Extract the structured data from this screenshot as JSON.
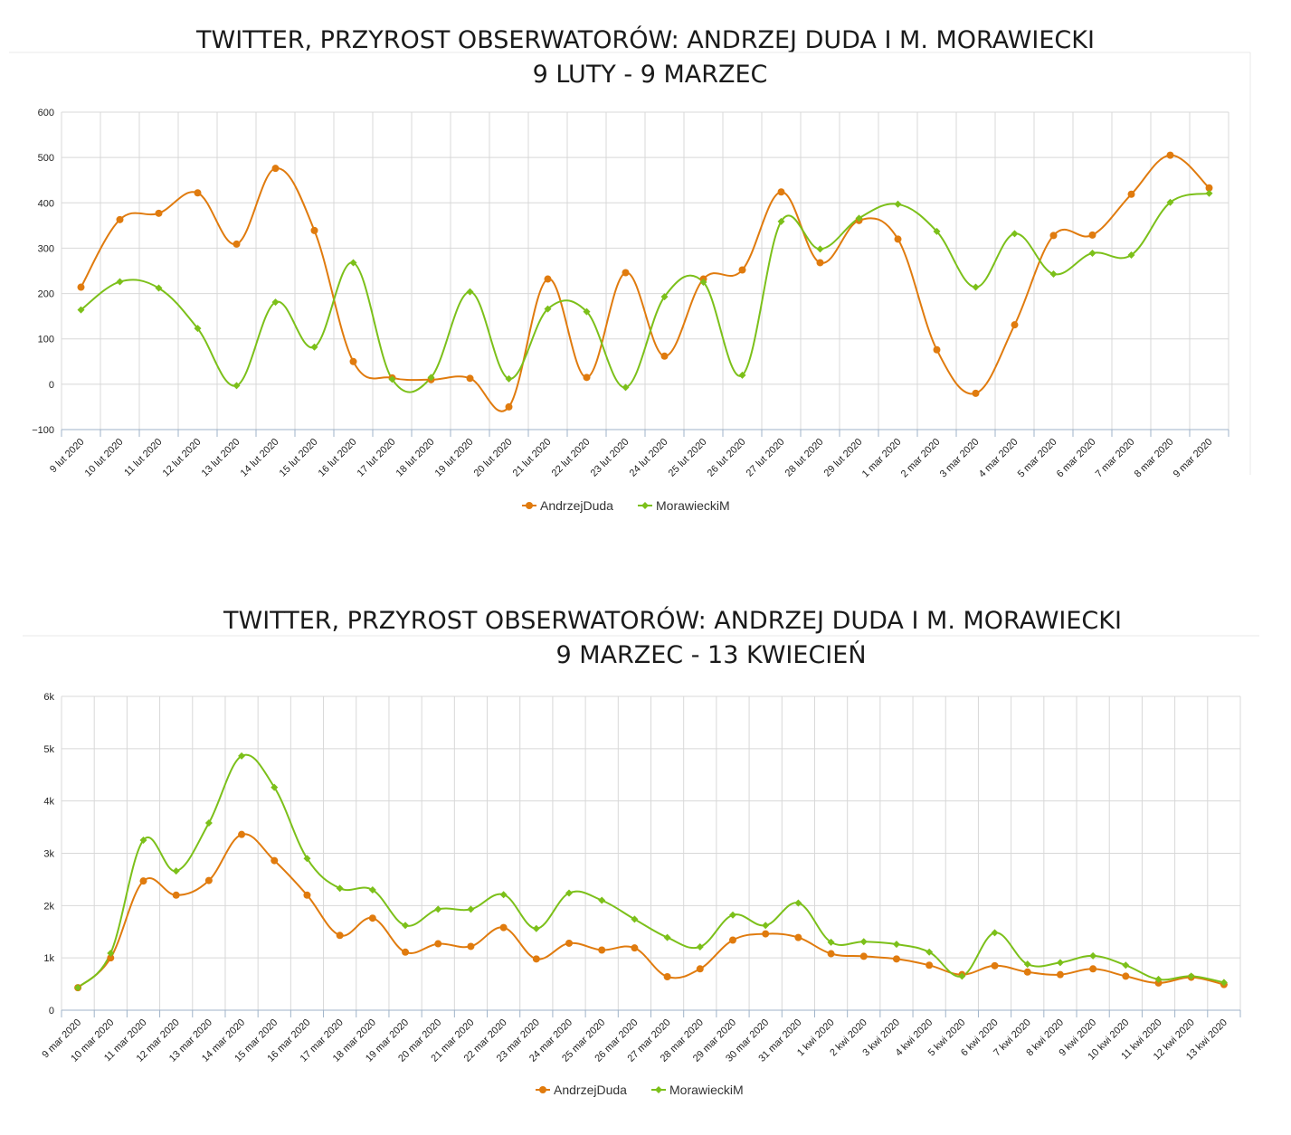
{
  "chart_data": [
    {
      "type": "line",
      "title": [
        "TWITTER, PRZYROST OBSERWATORÓW: ANDRZEJ DUDA I M. MORAWIECKI",
        "9 LUTY - 9 MARZEC"
      ],
      "categories": [
        "9 lut 2020",
        "10 lut 2020",
        "11 lut 2020",
        "12 lut 2020",
        "13 lut 2020",
        "14 lut 2020",
        "15 lut 2020",
        "16 lut 2020",
        "17 lut 2020",
        "18 lut 2020",
        "19 lut 2020",
        "20 lut 2020",
        "21 lut 2020",
        "22 lut 2020",
        "23 lut 2020",
        "24 lut 2020",
        "25 lut 2020",
        "26 lut 2020",
        "27 lut 2020",
        "28 lut 2020",
        "29 lut 2020",
        "1 mar 2020",
        "2 mar 2020",
        "3 mar 2020",
        "4 mar 2020",
        "5 mar 2020",
        "6 mar 2020",
        "7 mar 2020",
        "8 mar 2020",
        "9 mar 2020"
      ],
      "ylim": [
        -100,
        600
      ],
      "yticks": [
        "600",
        "500",
        "400",
        "300",
        "200",
        "100",
        "0",
        "−100"
      ],
      "ytick_values": [
        600,
        500,
        400,
        300,
        200,
        100,
        0,
        -100
      ],
      "grid": true,
      "legend": "bottom-center",
      "series": [
        {
          "name": "AndrzejDuda",
          "color": "#e07b0e",
          "marker": "circle",
          "values": [
            214,
            363,
            377,
            422,
            309,
            476,
            339,
            50,
            14,
            10,
            13,
            -50,
            232,
            15,
            246,
            62,
            232,
            252,
            424,
            268,
            361,
            320,
            76,
            -20,
            131,
            328,
            329,
            419,
            505,
            433
          ]
        },
        {
          "name": "MorawieckiM",
          "color": "#7cc01a",
          "marker": "diamond",
          "values": [
            164,
            226,
            212,
            123,
            -3,
            181,
            82,
            268,
            11,
            15,
            204,
            12,
            166,
            160,
            -7,
            193,
            225,
            20,
            359,
            298,
            366,
            397,
            337,
            214,
            332,
            243,
            289,
            285,
            401,
            421
          ]
        }
      ]
    },
    {
      "type": "line",
      "title": [
        "TWITTER, PRZYROST OBSERWATORÓW: ANDRZEJ DUDA I M. MORAWIECKI",
        "9 MARZEC - 13 KWIECIEŃ"
      ],
      "categories": [
        "9 mar 2020",
        "10 mar 2020",
        "11 mar 2020",
        "12 mar 2020",
        "13 mar 2020",
        "14 mar 2020",
        "15 mar 2020",
        "16 mar 2020",
        "17 mar 2020",
        "18 mar 2020",
        "19 mar 2020",
        "20 mar 2020",
        "21 mar 2020",
        "22 mar 2020",
        "23 mar 2020",
        "24 mar 2020",
        "25 mar 2020",
        "26 mar 2020",
        "27 mar 2020",
        "28 mar 2020",
        "29 mar 2020",
        "30 mar 2020",
        "31 mar 2020",
        "1 kwi 2020",
        "2 kwi 2020",
        "3 kwi 2020",
        "4 kwi 2020",
        "5 kwi 2020",
        "6 kwi 2020",
        "7 kwi 2020",
        "8 kwi 2020",
        "9 kwi 2020",
        "10 kwi 2020",
        "11 kwi 2020",
        "12 kwi 2020",
        "13 kwi 2020"
      ],
      "ylim": [
        0,
        6000
      ],
      "yticks": [
        "6k",
        "5k",
        "4k",
        "3k",
        "2k",
        "1k",
        "0"
      ],
      "ytick_values": [
        6000,
        5000,
        4000,
        3000,
        2000,
        1000,
        0
      ],
      "grid": true,
      "legend": "bottom-center",
      "series": [
        {
          "name": "AndrzejDuda",
          "color": "#e07b0e",
          "marker": "circle",
          "values": [
            430,
            1000,
            2470,
            2200,
            2480,
            3360,
            2860,
            2200,
            1430,
            1760,
            1110,
            1270,
            1220,
            1580,
            980,
            1280,
            1150,
            1190,
            640,
            790,
            1340,
            1460,
            1390,
            1080,
            1030,
            980,
            860,
            680,
            850,
            730,
            680,
            790,
            650,
            520,
            630,
            490
          ]
        },
        {
          "name": "MorawieckiM",
          "color": "#7cc01a",
          "marker": "diamond",
          "values": [
            430,
            1090,
            3250,
            2660,
            3580,
            4860,
            4260,
            2900,
            2330,
            2300,
            1620,
            1930,
            1930,
            2210,
            1560,
            2240,
            2100,
            1740,
            1390,
            1210,
            1820,
            1620,
            2050,
            1300,
            1310,
            1260,
            1110,
            650,
            1480,
            880,
            910,
            1040,
            860,
            590,
            650,
            530
          ]
        }
      ]
    }
  ]
}
